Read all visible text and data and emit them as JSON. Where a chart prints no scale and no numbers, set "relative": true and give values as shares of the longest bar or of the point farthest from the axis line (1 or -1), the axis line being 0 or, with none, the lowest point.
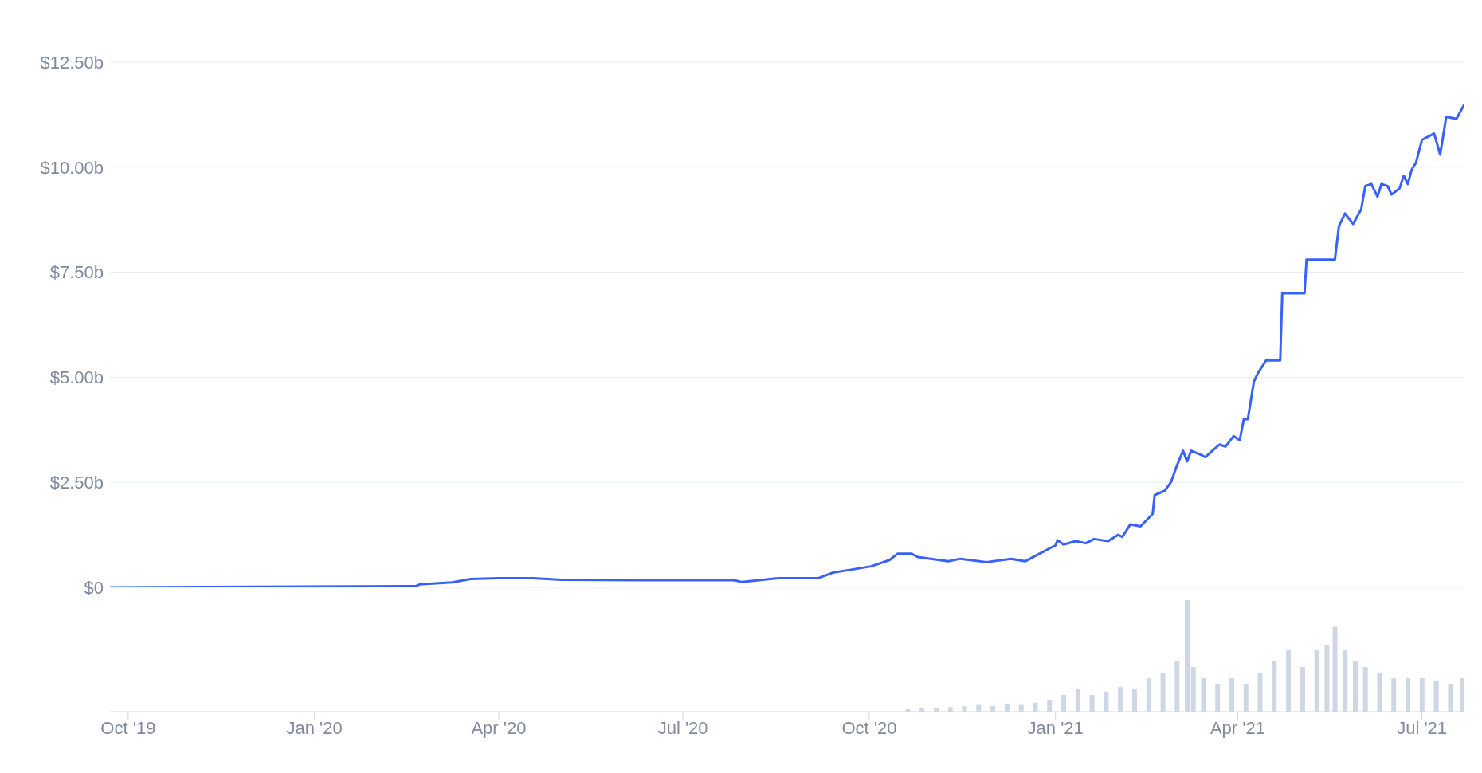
{
  "chart_data": [
    {
      "type": "line",
      "x": [
        "2019-09-22",
        "2020-02-20",
        "2020-02-22",
        "2020-03-09",
        "2020-03-18",
        "2020-04-01",
        "2020-04-18",
        "2020-05-02",
        "2020-06-11",
        "2020-07-26",
        "2020-07-30",
        "2020-08-17",
        "2020-09-06",
        "2020-09-13",
        "2020-09-22",
        "2020-10-02",
        "2020-10-11",
        "2020-10-15",
        "2020-10-22",
        "2020-10-25",
        "2020-11-09",
        "2020-11-15",
        "2020-11-28",
        "2020-12-10",
        "2020-12-17",
        "2020-12-24",
        "2021-01-01",
        "2021-01-02",
        "2021-01-05",
        "2021-01-11",
        "2021-01-16",
        "2021-01-20",
        "2021-01-27",
        "2021-02-01",
        "2021-02-03",
        "2021-02-07",
        "2021-02-12",
        "2021-02-18",
        "2021-02-19",
        "2021-02-24",
        "2021-02-27",
        "2021-03-02",
        "2021-03-05",
        "2021-03-07",
        "2021-03-09",
        "2021-03-14",
        "2021-03-16",
        "2021-03-23",
        "2021-03-26",
        "2021-03-30",
        "2021-04-02",
        "2021-04-04",
        "2021-04-06",
        "2021-04-09",
        "2021-04-11",
        "2021-04-15",
        "2021-04-22",
        "2021-04-23",
        "2021-05-04",
        "2021-05-05",
        "2021-05-19",
        "2021-05-21",
        "2021-05-24",
        "2021-05-28",
        "2021-06-01",
        "2021-06-03",
        "2021-06-06",
        "2021-06-09",
        "2021-06-11",
        "2021-06-14",
        "2021-06-16",
        "2021-06-20",
        "2021-06-22",
        "2021-06-24",
        "2021-06-26",
        "2021-06-28",
        "2021-07-01",
        "2021-07-07",
        "2021-07-10",
        "2021-07-13",
        "2021-07-18",
        "2021-07-22"
      ],
      "series": [
        {
          "color": "#3861fb",
          "values": [
            0.0,
            0.03,
            0.07,
            0.12,
            0.2,
            0.22,
            0.22,
            0.18,
            0.17,
            0.17,
            0.13,
            0.22,
            0.22,
            0.35,
            0.42,
            0.5,
            0.65,
            0.8,
            0.8,
            0.72,
            0.62,
            0.68,
            0.6,
            0.68,
            0.62,
            0.8,
            1.0,
            1.12,
            1.02,
            1.1,
            1.05,
            1.15,
            1.1,
            1.25,
            1.2,
            1.5,
            1.45,
            1.75,
            2.2,
            2.3,
            2.5,
            2.9,
            3.25,
            3.0,
            3.25,
            3.15,
            3.1,
            3.4,
            3.35,
            3.6,
            3.5,
            4.0,
            4.0,
            4.9,
            5.1,
            5.4,
            5.4,
            7.0,
            7.0,
            7.8,
            7.8,
            8.6,
            8.9,
            8.65,
            9.0,
            9.55,
            9.6,
            9.3,
            9.6,
            9.55,
            9.35,
            9.5,
            9.8,
            9.6,
            9.95,
            10.1,
            10.65,
            10.8,
            10.3,
            11.2,
            11.15,
            11.5
          ]
        }
      ],
      "xlim": [
        "2019-09-22",
        "2021-07-22"
      ],
      "ylim": [
        0,
        12.5
      ],
      "yticks": [
        {
          "value": 0,
          "label": "$0"
        },
        {
          "value": 2.5,
          "label": "$2.50b"
        },
        {
          "value": 5,
          "label": "$5.00b"
        },
        {
          "value": 7.5,
          "label": "$7.50b"
        },
        {
          "value": 10,
          "label": "$10.00b"
        },
        {
          "value": 12.5,
          "label": "$12.50b"
        }
      ],
      "grid": "y",
      "tick_labels": "y",
      "marker": "none",
      "line_style": "solid"
    },
    {
      "type": "bar",
      "relative": true,
      "color": "#cfd6e4",
      "x": [
        "2020-10-20",
        "2020-10-27",
        "2020-11-03",
        "2020-11-10",
        "2020-11-17",
        "2020-11-24",
        "2020-12-01",
        "2020-12-08",
        "2020-12-15",
        "2020-12-22",
        "2020-12-29",
        "2021-01-05",
        "2021-01-12",
        "2021-01-19",
        "2021-01-26",
        "2021-02-02",
        "2021-02-09",
        "2021-02-16",
        "2021-02-23",
        "2021-03-02",
        "2021-03-07",
        "2021-03-10",
        "2021-03-15",
        "2021-03-22",
        "2021-03-29",
        "2021-04-05",
        "2021-04-12",
        "2021-04-19",
        "2021-04-26",
        "2021-05-03",
        "2021-05-10",
        "2021-05-15",
        "2021-05-19",
        "2021-05-24",
        "2021-05-29",
        "2021-06-03",
        "2021-06-10",
        "2021-06-17",
        "2021-06-24",
        "2021-07-01",
        "2021-07-08",
        "2021-07-15",
        "2021-07-21"
      ],
      "values": [
        0.02,
        0.03,
        0.03,
        0.04,
        0.05,
        0.06,
        0.05,
        0.07,
        0.06,
        0.08,
        0.1,
        0.15,
        0.2,
        0.15,
        0.18,
        0.22,
        0.2,
        0.3,
        0.35,
        0.45,
        1.0,
        0.4,
        0.3,
        0.25,
        0.3,
        0.25,
        0.35,
        0.45,
        0.55,
        0.4,
        0.55,
        0.6,
        0.76,
        0.55,
        0.45,
        0.4,
        0.35,
        0.3,
        0.3,
        0.3,
        0.28,
        0.25,
        0.3
      ],
      "xlim": [
        "2019-09-22",
        "2021-07-22"
      ],
      "xticks": [
        {
          "value": "2019-10-01",
          "label": "Oct '19"
        },
        {
          "value": "2020-01-01",
          "label": "Jan '20"
        },
        {
          "value": "2020-04-01",
          "label": "Apr '20"
        },
        {
          "value": "2020-07-01",
          "label": "Jul '20"
        },
        {
          "value": "2020-10-01",
          "label": "Oct '20"
        },
        {
          "value": "2021-01-01",
          "label": "Jan '21"
        },
        {
          "value": "2021-04-01",
          "label": "Apr '21"
        },
        {
          "value": "2021-07-01",
          "label": "Jul '21"
        }
      ],
      "tick_labels": "x"
    }
  ]
}
